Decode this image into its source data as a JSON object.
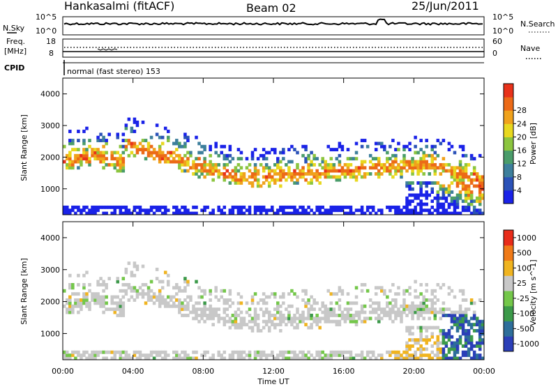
{
  "header": {
    "station": "Hankasalmi (fitACF)",
    "beam": "Beam 02",
    "date": "25/Jun/2011"
  },
  "noise_panel": {
    "left_label": "N.Sky",
    "right_label": "N.Search",
    "left_ticks": [
      "10^5",
      "10^0"
    ],
    "right_ticks": [
      "10^5",
      "10^0"
    ]
  },
  "freq_panel": {
    "left_label_1": "Freq.",
    "left_label_2": "[MHz]",
    "left_ticks": [
      "18",
      "8"
    ],
    "right_label": "Nave",
    "right_ticks": [
      "60",
      "0"
    ],
    "cpid_label": "CPID",
    "cpid_text": "normal (fast stereo) 153"
  },
  "chart_data": [
    {
      "type": "heatmap",
      "title": "Power",
      "ylabel": "Slant Range [km]",
      "xlabel": "",
      "ylim": [
        180,
        4500
      ],
      "x_hours": [
        0,
        24
      ],
      "y_ticks": [
        "1000",
        "2000",
        "3000",
        "4000"
      ],
      "colorbar": {
        "label": "Power [dB]",
        "range": [
          0,
          32
        ],
        "ticks": [
          "4",
          "8",
          "12",
          "16",
          "20",
          "24",
          "28"
        ],
        "colors": [
          "#1a22e8",
          "#2b52b8",
          "#3d7f9c",
          "#4a9c6a",
          "#8cc53f",
          "#e8d81f",
          "#f0a21c",
          "#ec6a17",
          "#e8321a"
        ]
      }
    },
    {
      "type": "heatmap",
      "title": "Velocity",
      "ylabel": "Slant Range [km]",
      "xlabel": "Time UT",
      "ylim": [
        180,
        4500
      ],
      "x_hours": [
        0,
        24
      ],
      "y_ticks": [
        "1000",
        "2000",
        "3000",
        "4000"
      ],
      "x_ticks": [
        "00:00",
        "04:00",
        "08:00",
        "12:00",
        "16:00",
        "20:00",
        "00:00"
      ],
      "colorbar": {
        "label": "Velocity [m s^-1]",
        "ticks": [
          "1000",
          "500",
          "100",
          "25",
          "-25",
          "-100",
          "-500",
          "-1000"
        ],
        "colors": [
          "#2b3fb8",
          "#2e6e9a",
          "#3c9a4a",
          "#74c74a",
          "#c8c8c8",
          "#f0b420",
          "#f07a18",
          "#e82c1a"
        ]
      }
    }
  ]
}
